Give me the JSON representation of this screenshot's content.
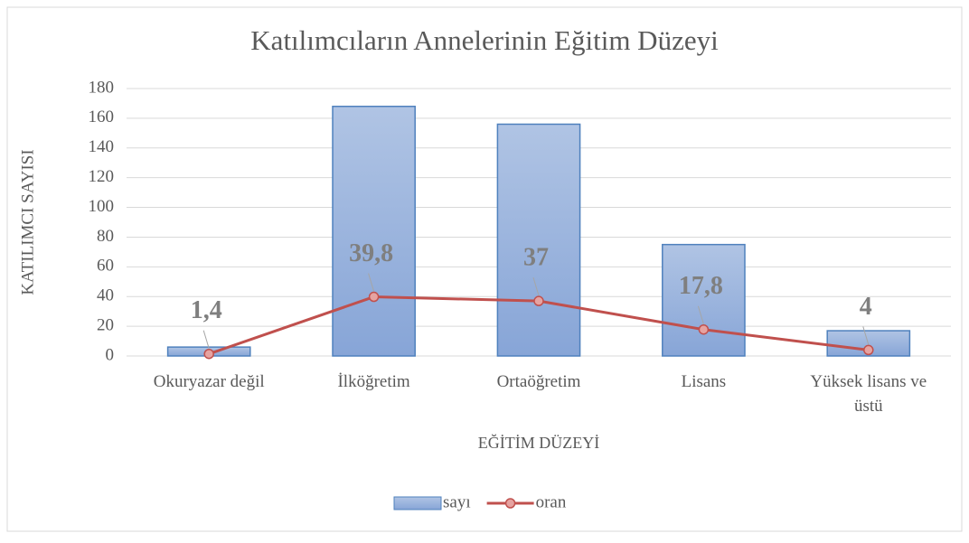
{
  "chart_data": {
    "type": "bar",
    "title": "Katılımcıların Annelerinin Eğitim Düzeyi",
    "x_label": "EĞİTİM DÜZEYİ",
    "y_label": "KATILIMCI SAYISI",
    "categories": [
      "Okuryazar değil",
      "İlköğretim",
      "Ortaöğretim",
      "Lisans",
      "Yüksek lisans ve üstü"
    ],
    "series": [
      {
        "name": "sayı",
        "type": "bar",
        "color": "#8eaadb",
        "values": [
          6,
          168,
          156,
          75,
          17
        ]
      },
      {
        "name": "oran",
        "type": "line",
        "color": "#c0504d",
        "values": [
          1.4,
          39.8,
          37,
          17.8,
          4
        ],
        "value_labels": [
          "1,4",
          "39,8",
          "37",
          "17,8",
          "4"
        ]
      }
    ],
    "ylim": [
      0,
      180
    ],
    "yticks": [
      0,
      20,
      40,
      60,
      80,
      100,
      120,
      140,
      160,
      180
    ],
    "grid": true,
    "legend": "bottom"
  }
}
